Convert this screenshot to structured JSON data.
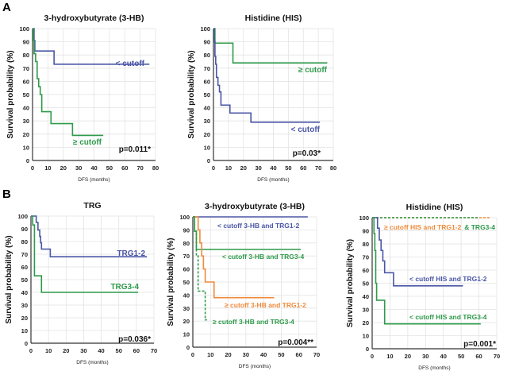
{
  "panel_labels": [
    "A",
    "B"
  ],
  "chart_data": [
    {
      "type": "line",
      "step": true,
      "title": "3-hydroxybutyrate (3-HB)",
      "xlabel": "DFS (months)",
      "ylabel": "Survival probability  (%)",
      "xlim": [
        0,
        80
      ],
      "ylim": [
        0,
        100
      ],
      "xticks": [
        0,
        10,
        20,
        30,
        40,
        50,
        60,
        70,
        80
      ],
      "yticks": [
        0,
        10,
        20,
        30,
        40,
        50,
        60,
        70,
        80,
        90,
        100
      ],
      "grid": true,
      "annotation": "p=0.011*",
      "series": [
        {
          "name": "< cutoff",
          "color": "#4a56a6",
          "dashed": false,
          "points": [
            [
              0,
              100
            ],
            [
              1,
              91
            ],
            [
              1.5,
              83
            ],
            [
              14,
              73
            ],
            [
              76,
              73
            ]
          ]
        },
        {
          "name": "≥ cutoff",
          "color": "#2e9a4a",
          "dashed": false,
          "points": [
            [
              0,
              100
            ],
            [
              0.5,
              91
            ],
            [
              1,
              81
            ],
            [
              2,
              75
            ],
            [
              3,
              62
            ],
            [
              4,
              56
            ],
            [
              5,
              50
            ],
            [
              6,
              37
            ],
            [
              12,
              28
            ],
            [
              26,
              19
            ],
            [
              46,
              19
            ]
          ]
        }
      ]
    },
    {
      "type": "line",
      "step": true,
      "title": "Histidine (HIS)",
      "xlabel": "DFS (months)",
      "ylabel": "Survival probability  (%)",
      "xlim": [
        0,
        80
      ],
      "ylim": [
        0,
        100
      ],
      "xticks": [
        0,
        10,
        20,
        30,
        40,
        50,
        60,
        70,
        80
      ],
      "yticks": [
        0,
        10,
        20,
        30,
        40,
        50,
        60,
        70,
        80,
        90,
        100
      ],
      "grid": true,
      "annotation": "p=0.03*",
      "series": [
        {
          "name": "≥ cutoff",
          "color": "#2e9a4a",
          "dashed": false,
          "points": [
            [
              0,
              100
            ],
            [
              1,
              89
            ],
            [
              13,
              74
            ],
            [
              76,
              74
            ]
          ]
        },
        {
          "name": "< cutoff",
          "color": "#4a56a6",
          "dashed": false,
          "points": [
            [
              0,
              100
            ],
            [
              0.5,
              90
            ],
            [
              1,
              79
            ],
            [
              1.5,
              73
            ],
            [
              2,
              63
            ],
            [
              3,
              57
            ],
            [
              4,
              52
            ],
            [
              5,
              42
            ],
            [
              11,
              36
            ],
            [
              25,
              29
            ],
            [
              71,
              29
            ]
          ]
        }
      ]
    },
    {
      "type": "line",
      "step": true,
      "title": "TRG",
      "xlabel": "DFS (months)",
      "ylabel": "Survival probability  (%)",
      "xlim": [
        0,
        70
      ],
      "ylim": [
        0,
        100
      ],
      "xticks": [
        0,
        10,
        20,
        30,
        40,
        50,
        60,
        70
      ],
      "yticks": [
        0,
        10,
        20,
        30,
        40,
        50,
        60,
        70,
        80,
        90,
        100
      ],
      "grid": true,
      "annotation": "p=0.036*",
      "series": [
        {
          "name": "TRG1-2",
          "color": "#4a56a6",
          "dashed": false,
          "points": [
            [
              0,
              100
            ],
            [
              3,
              95
            ],
            [
              4,
              89
            ],
            [
              5,
              84
            ],
            [
              5.5,
              79
            ],
            [
              6,
              74
            ],
            [
              11,
              68
            ],
            [
              66,
              68
            ]
          ]
        },
        {
          "name": "TRG3-4",
          "color": "#2e9a4a",
          "dashed": false,
          "points": [
            [
              0,
              100
            ],
            [
              1,
              93
            ],
            [
              2,
              53
            ],
            [
              6,
              40
            ],
            [
              61,
              40
            ]
          ]
        }
      ]
    },
    {
      "type": "line",
      "step": true,
      "title": "3-hydroxybutyrate (3-HB)",
      "xlabel": "DFS (months)",
      "ylabel": "Survival probability  (%)",
      "xlim": [
        0,
        70
      ],
      "ylim": [
        0,
        100
      ],
      "xticks": [
        0,
        10,
        20,
        30,
        40,
        50,
        60,
        70
      ],
      "yticks": [
        0,
        10,
        20,
        30,
        40,
        50,
        60,
        70,
        80,
        90,
        100
      ],
      "grid": true,
      "annotation": "p=0.004**",
      "series": [
        {
          "name": "< cutoff  3-HB and TRG1-2",
          "color": "#4a56a6",
          "dashed": false,
          "points": [
            [
              0,
              100
            ],
            [
              65,
              100
            ]
          ]
        },
        {
          "name": "< cutoff  3-HB and TRG3-4",
          "color": "#2e9a4a",
          "dashed": false,
          "points": [
            [
              0,
              100
            ],
            [
              1,
              89
            ],
            [
              2,
              75
            ],
            [
              61,
              75
            ]
          ]
        },
        {
          "name": "≥ cutoff 3-HB and TRG1-2",
          "color": "#f08a3a",
          "dashed": false,
          "points": [
            [
              0,
              100
            ],
            [
              3,
              90
            ],
            [
              4,
              80
            ],
            [
              5,
              70
            ],
            [
              6,
              60
            ],
            [
              7,
              50
            ],
            [
              12,
              38
            ],
            [
              46,
              38
            ]
          ]
        },
        {
          "name": "≥ cutoff  3-HB and TRG3-4",
          "color": "#2e9a4a",
          "dashed": true,
          "points": [
            [
              0,
              100
            ],
            [
              1,
              89
            ],
            [
              2,
              70
            ],
            [
              3,
              43
            ],
            [
              7,
              21
            ],
            [
              8,
              21
            ]
          ]
        }
      ]
    },
    {
      "type": "line",
      "step": true,
      "title": "Histidine (HIS)",
      "xlabel": "DFS (months)",
      "ylabel": "Survival probability  (%)",
      "xlim": [
        0,
        70
      ],
      "ylim": [
        0,
        100
      ],
      "xticks": [
        0,
        10,
        20,
        30,
        40,
        50,
        60,
        70
      ],
      "yticks": [
        0,
        10,
        20,
        30,
        40,
        50,
        60,
        70,
        80,
        90,
        100
      ],
      "grid": true,
      "annotation": "p=0.001*",
      "series": [
        {
          "name": "≥ cutoff HIS and TRG1-2",
          "color": "#f08a3a",
          "dashed": true,
          "points": [
            [
              0,
              100
            ],
            [
              66,
              100
            ]
          ]
        },
        {
          "name": "& TRG3-4",
          "color": "#2e9a4a",
          "dashed": true,
          "points": [
            [
              0,
              100
            ],
            [
              60,
              100
            ]
          ]
        },
        {
          "name": "< cutoff HIS and TRG1-2",
          "color": "#4a56a6",
          "dashed": false,
          "points": [
            [
              0,
              100
            ],
            [
              3,
              92
            ],
            [
              4,
              83
            ],
            [
              5,
              75
            ],
            [
              6,
              67
            ],
            [
              7,
              58
            ],
            [
              12,
              48
            ],
            [
              51,
              48
            ]
          ]
        },
        {
          "name": "< cutoff HIS and TRG3-4",
          "color": "#2e9a4a",
          "dashed": false,
          "points": [
            [
              0,
              100
            ],
            [
              1,
              88
            ],
            [
              1.5,
              75
            ],
            [
              2,
              50
            ],
            [
              2.5,
              37
            ],
            [
              7,
              19
            ],
            [
              61,
              19
            ]
          ]
        }
      ]
    }
  ]
}
